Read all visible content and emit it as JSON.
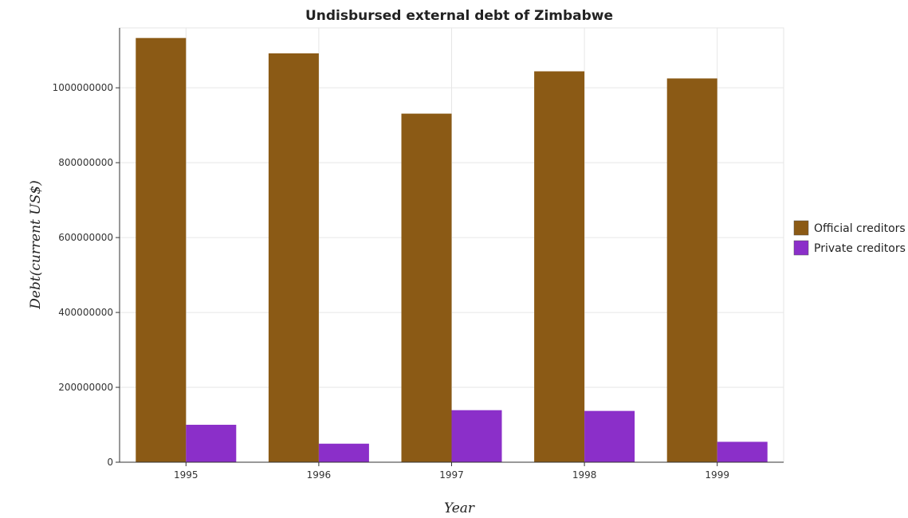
{
  "chart_data": {
    "type": "bar",
    "title": "Undisbursed external debt of Zimbabwe",
    "xlabel": "Year",
    "ylabel": "Debt(current US$)",
    "categories": [
      "1995",
      "1996",
      "1997",
      "1998",
      "1999"
    ],
    "series": [
      {
        "name": "Official creditors",
        "color": "#8b5a15",
        "values": [
          1133000000,
          1092000000,
          931000000,
          1044000000,
          1025000000
        ]
      },
      {
        "name": "Private creditors",
        "color": "#8b2fc9",
        "values": [
          100000000,
          49500000,
          139000000,
          137000000,
          54500000
        ]
      }
    ],
    "ylim": [
      0,
      1160000000
    ],
    "yticks": [
      0,
      200000000,
      400000000,
      600000000,
      800000000,
      1000000000
    ],
    "ytick_labels": [
      "0",
      "200000000",
      "400000000",
      "600000000",
      "800000000",
      "1000000000"
    ],
    "grid": true,
    "legend_position": "right"
  }
}
